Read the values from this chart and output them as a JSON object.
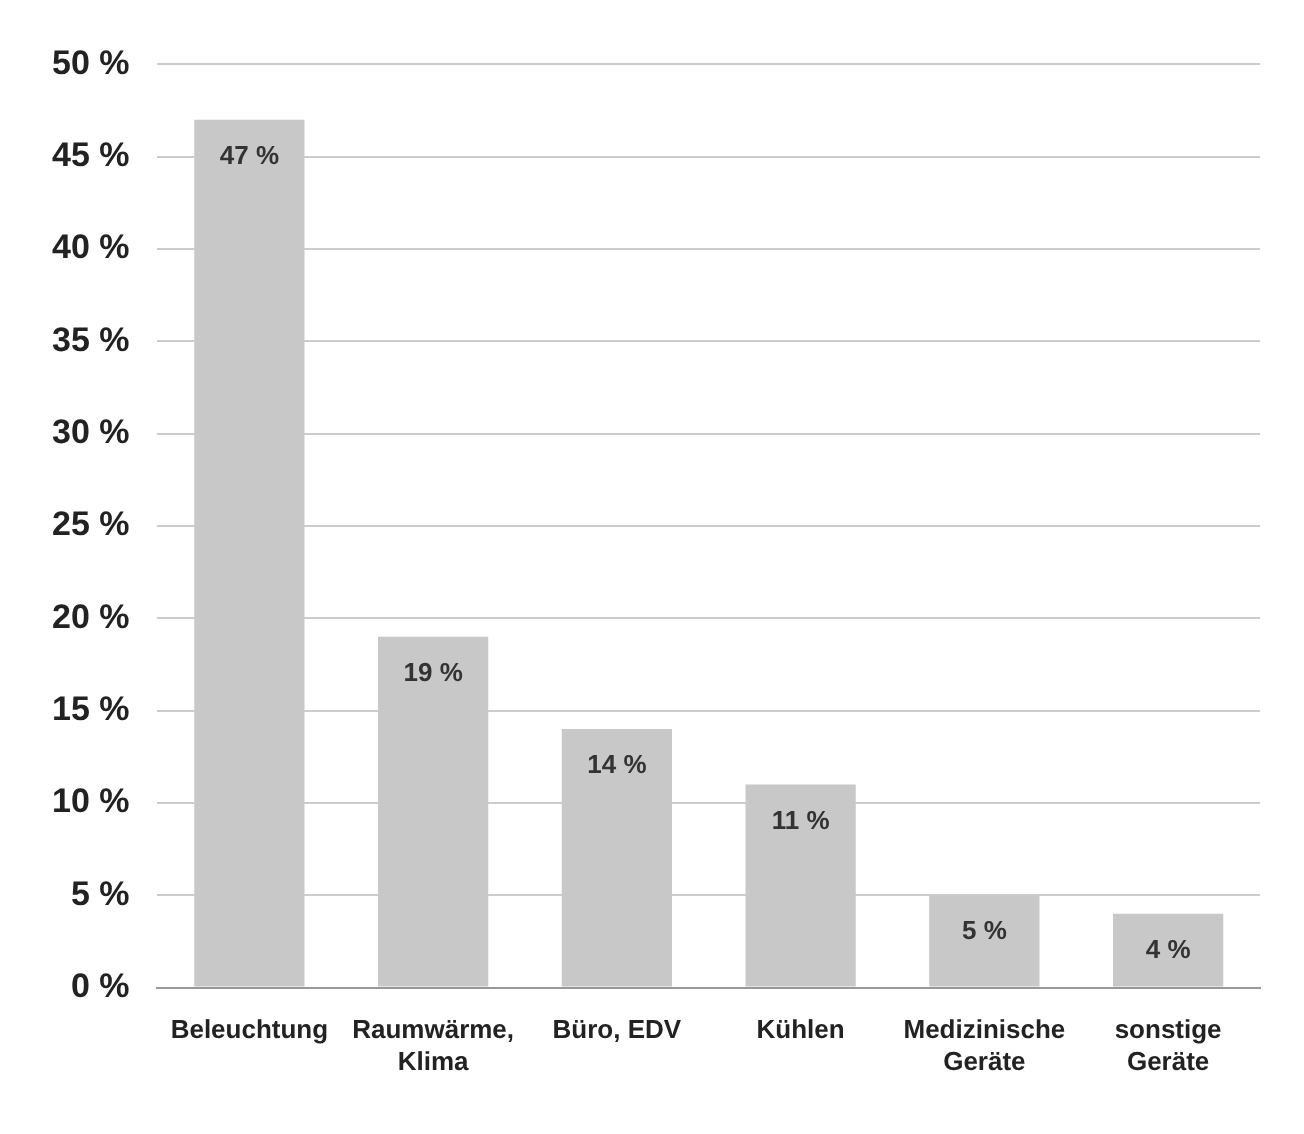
{
  "chart_data": {
    "type": "bar",
    "categories": [
      "Beleuchtung",
      "Raumwärme, Klima",
      "Büro, EDV",
      "Kühlen",
      "Medizinische Geräte",
      "sonstige Geräte"
    ],
    "values": [
      47,
      19,
      14,
      11,
      5,
      4
    ],
    "color": "#c8c8c8",
    "value_labels": [
      "47 %",
      "19 %",
      "14 %",
      "11 %",
      "5 %",
      "4 %"
    ],
    "ylim": [
      0,
      50
    ],
    "yticks": [
      {
        "value": 0,
        "label": "0 %"
      },
      {
        "value": 5,
        "label": "5 %"
      },
      {
        "value": 10,
        "label": "10 %"
      },
      {
        "value": 15,
        "label": "15 %"
      },
      {
        "value": 20,
        "label": "20 %"
      },
      {
        "value": 25,
        "label": "25 %"
      },
      {
        "value": 30,
        "label": "30 %"
      },
      {
        "value": 35,
        "label": "35 %"
      },
      {
        "value": 40,
        "label": "40 %"
      },
      {
        "value": 45,
        "label": "45 %"
      },
      {
        "value": 50,
        "label": "50 %"
      }
    ],
    "grid": "y",
    "legend": false
  }
}
